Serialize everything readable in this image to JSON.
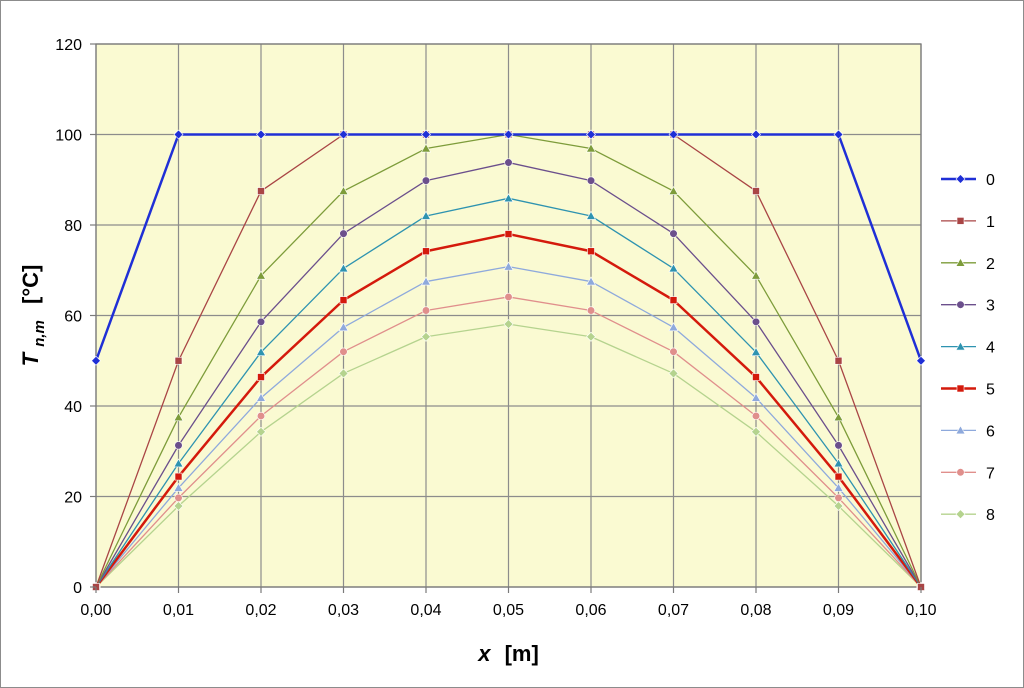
{
  "chart_data": {
    "type": "line",
    "title": "",
    "xlabel_main": "x",
    "xlabel_unit": "[m]",
    "ylabel_main": "T",
    "ylabel_sub": "n,m",
    "ylabel_unit": "[°C]",
    "xlim": [
      0,
      0.1
    ],
    "ylim": [
      0,
      120
    ],
    "grid": true,
    "legend_position": "right",
    "plot_background": "#fafad2",
    "x": [
      0.0,
      0.01,
      0.02,
      0.03,
      0.04,
      0.05,
      0.06,
      0.07,
      0.08,
      0.09,
      0.1
    ],
    "x_tick_labels": [
      "0,00",
      "0,01",
      "0,02",
      "0,03",
      "0,04",
      "0,05",
      "0,06",
      "0,07",
      "0,08",
      "0,09",
      "0,10"
    ],
    "y_ticks": [
      0,
      20,
      40,
      60,
      80,
      100,
      120
    ],
    "y_tick_labels": [
      "0",
      "20",
      "40",
      "60",
      "80",
      "100",
      "120"
    ],
    "series": [
      {
        "name": "0",
        "color": "#1f2fd6",
        "marker": "diamond",
        "width": 2.5,
        "values": [
          50,
          100,
          100,
          100,
          100,
          100,
          100,
          100,
          100,
          100,
          50
        ]
      },
      {
        "name": "1",
        "color": "#a94545",
        "marker": "square",
        "width": 1.3,
        "values": [
          0,
          50,
          87.5,
          100,
          100,
          100,
          100,
          100,
          87.5,
          50,
          0
        ]
      },
      {
        "name": "2",
        "color": "#7d9c3a",
        "marker": "triangle",
        "width": 1.3,
        "values": [
          0,
          37.5,
          68.8,
          87.5,
          96.9,
          100,
          96.9,
          87.5,
          68.8,
          37.5,
          0
        ]
      },
      {
        "name": "3",
        "color": "#6b4f8c",
        "marker": "circle",
        "width": 1.3,
        "values": [
          0,
          31.3,
          58.6,
          78.1,
          89.8,
          93.8,
          89.8,
          78.1,
          58.6,
          31.3,
          0
        ]
      },
      {
        "name": "4",
        "color": "#2e93b0",
        "marker": "triangle",
        "width": 1.3,
        "values": [
          0,
          27.3,
          51.9,
          70.4,
          82.0,
          85.9,
          82.0,
          70.4,
          51.9,
          27.3,
          0
        ]
      },
      {
        "name": "5",
        "color": "#d41a0c",
        "marker": "square",
        "width": 2.5,
        "values": [
          0,
          24.4,
          46.4,
          63.4,
          74.2,
          78.0,
          74.2,
          63.4,
          46.4,
          24.4,
          0
        ]
      },
      {
        "name": "6",
        "color": "#8ea9dc",
        "marker": "triangle",
        "width": 1.3,
        "values": [
          0,
          21.9,
          41.8,
          57.4,
          67.5,
          70.8,
          67.5,
          57.4,
          41.8,
          21.9,
          0
        ]
      },
      {
        "name": "7",
        "color": "#e08f8c",
        "marker": "circle",
        "width": 1.3,
        "values": [
          0,
          19.7,
          37.8,
          52.0,
          61.1,
          64.1,
          61.1,
          52.0,
          37.8,
          19.7,
          0
        ]
      },
      {
        "name": "8",
        "color": "#b5d38e",
        "marker": "diamond",
        "width": 1.3,
        "values": [
          0,
          17.9,
          34.3,
          47.2,
          55.3,
          58.1,
          55.3,
          47.2,
          34.3,
          17.9,
          0
        ]
      }
    ]
  }
}
